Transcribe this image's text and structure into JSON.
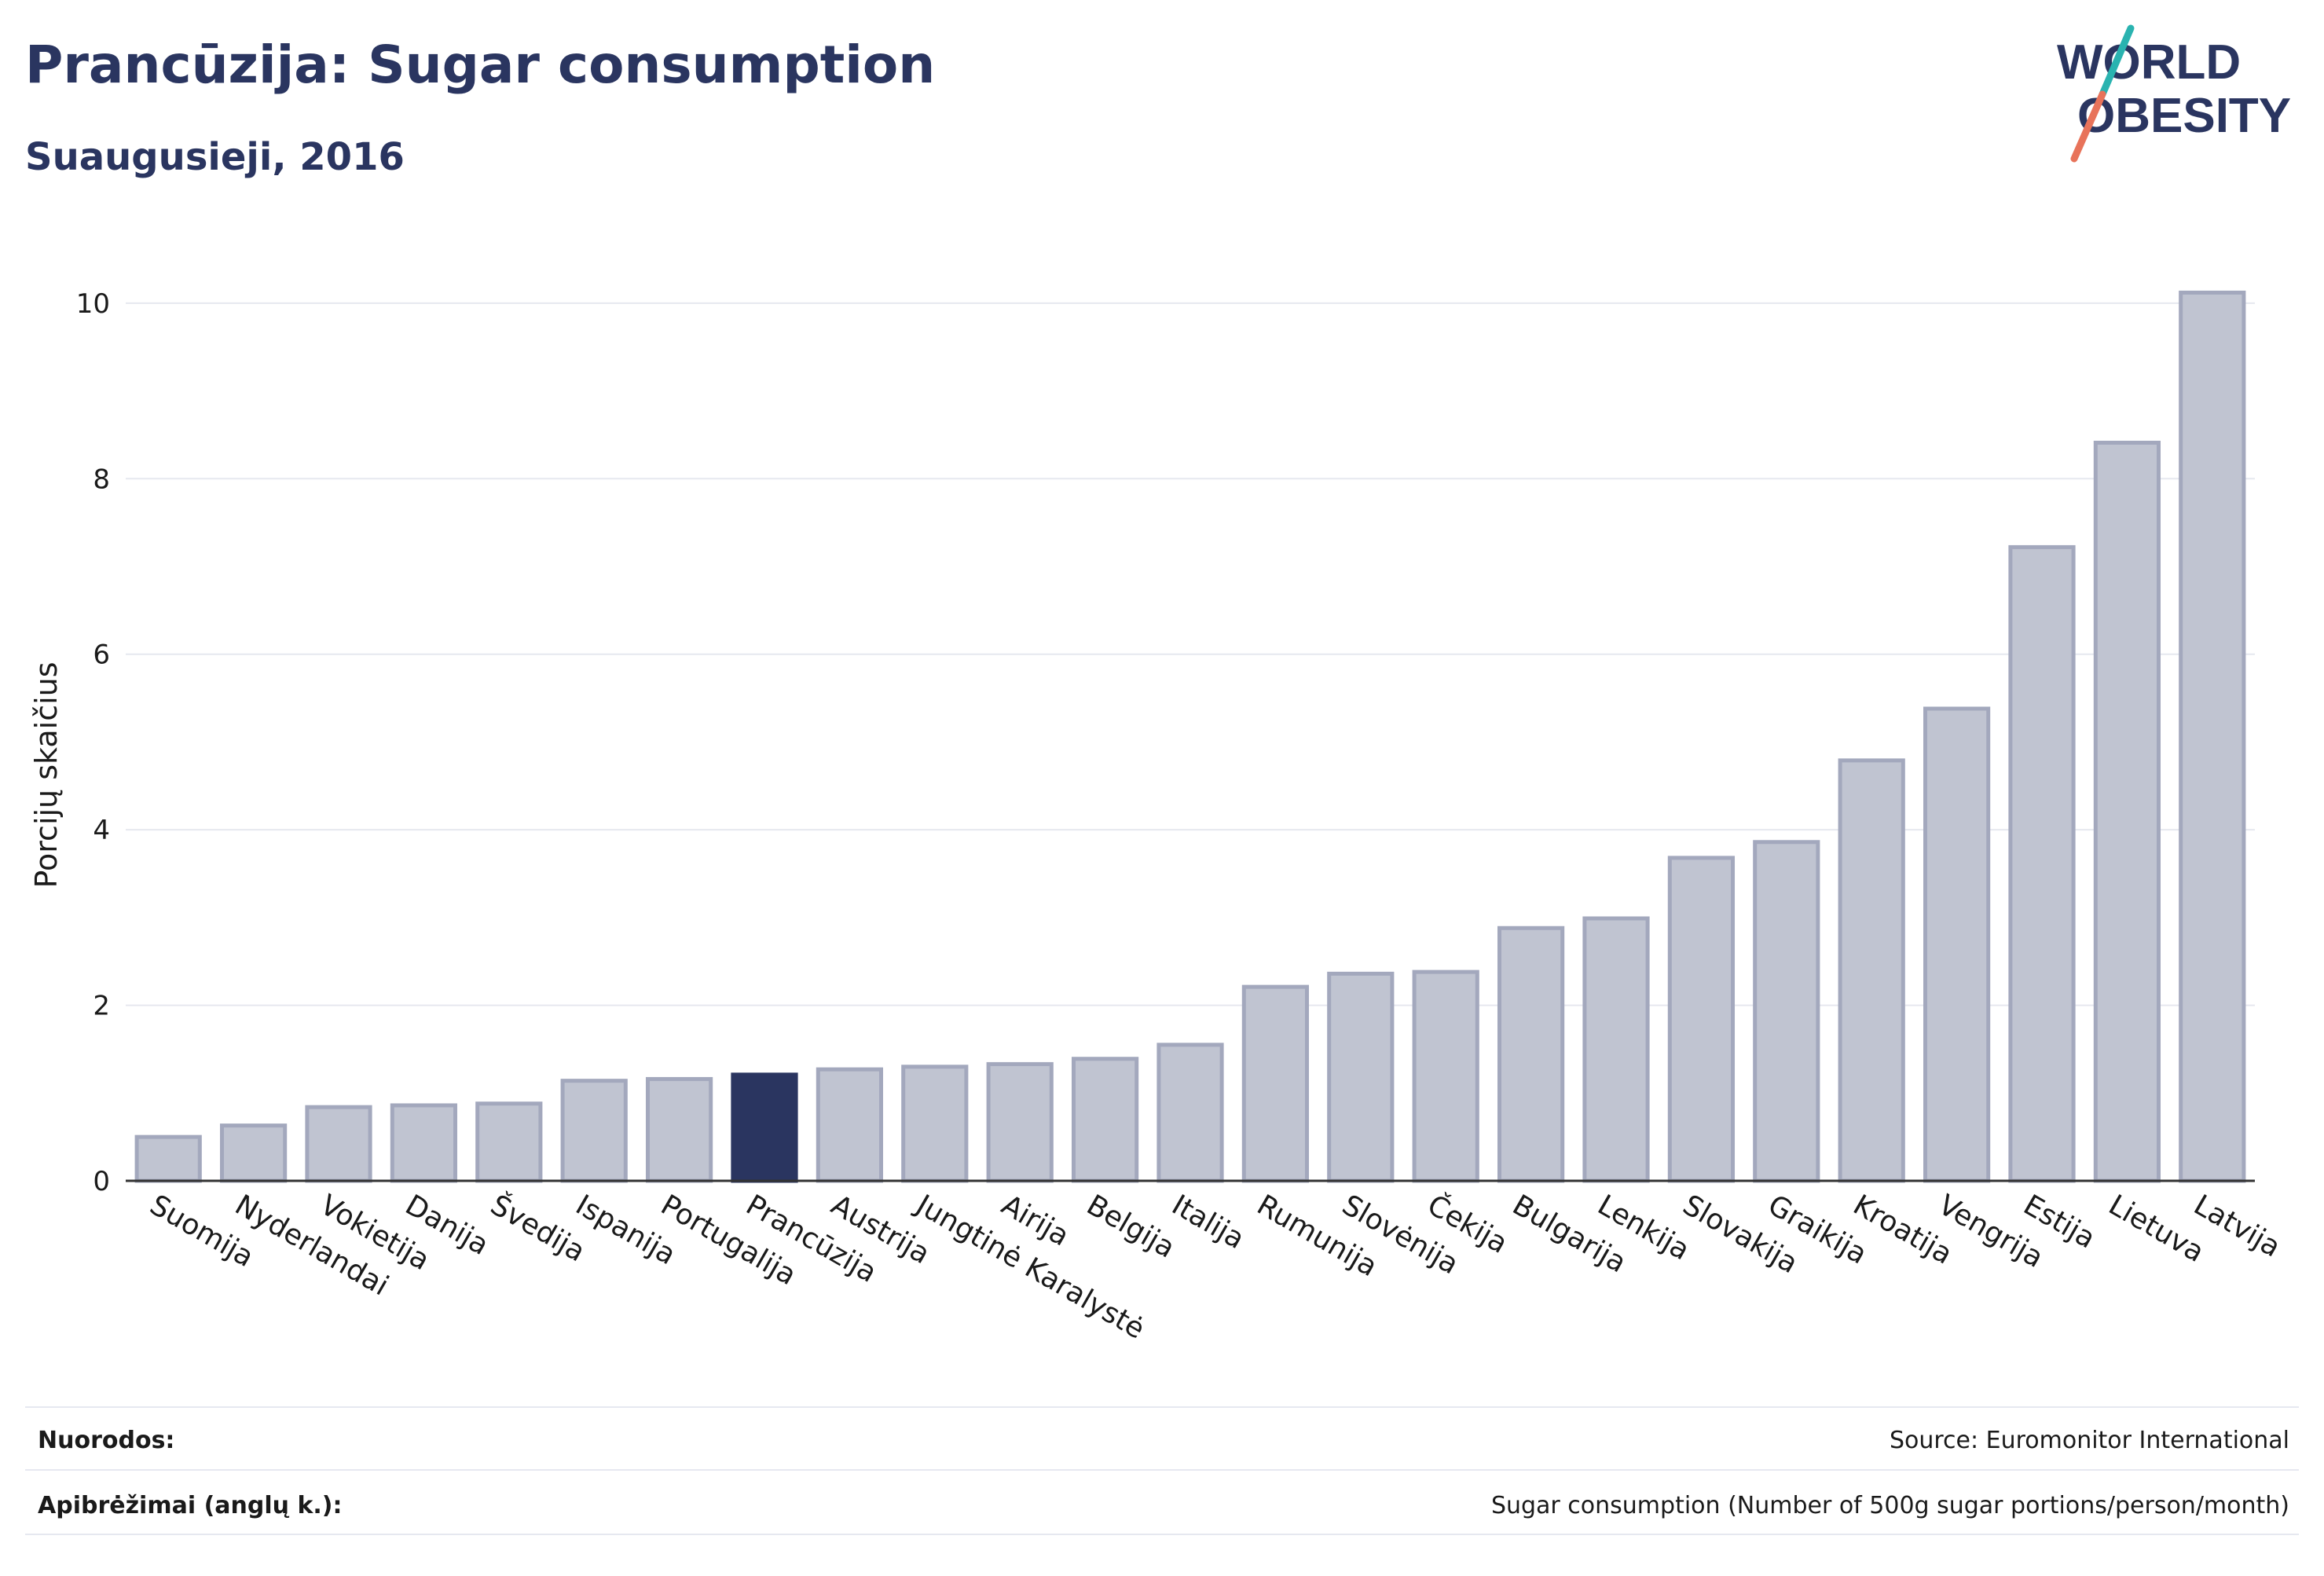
{
  "header": {
    "title": "Prancūzija: Sugar consumption",
    "subtitle": "Suaugusieji, 2016"
  },
  "logo": {
    "line1": "WORLD",
    "line2": "OBESITY",
    "colors": {
      "text": "#2a3560",
      "slash_top": "#2ab3b0",
      "slash_bottom": "#e8735a"
    }
  },
  "colors": {
    "bar": "#c0c4d1",
    "bar_stroke": "#a3a8bd",
    "highlight": "#2a3560",
    "grid": "#e6e8ef",
    "axis": "#333333"
  },
  "chart_data": {
    "type": "bar",
    "ylabel": "Porcijų skaičius",
    "xlabel": "",
    "ylim": [
      0,
      10.5
    ],
    "yticks": [
      0,
      2,
      4,
      6,
      8,
      10
    ],
    "grid": true,
    "highlight": "Prancūzija",
    "categories": [
      "Suomija",
      "Nyderlandai",
      "Vokietija",
      "Danija",
      "Švedija",
      "Ispanija",
      "Portugalija",
      "Prancūzija",
      "Austrija",
      "Jungtinė Karalystė",
      "Airija",
      "Belgija",
      "Italija",
      "Rumunija",
      "Slovėnija",
      "Čekija",
      "Bulgarija",
      "Lenkija",
      "Slovakija",
      "Graikija",
      "Kroatija",
      "Vengrija",
      "Estija",
      "Lietuva",
      "Latvija"
    ],
    "values": [
      0.5,
      0.63,
      0.84,
      0.86,
      0.88,
      1.14,
      1.16,
      1.21,
      1.27,
      1.3,
      1.33,
      1.39,
      1.55,
      2.21,
      2.36,
      2.38,
      2.88,
      2.99,
      3.68,
      3.86,
      4.79,
      5.38,
      7.22,
      8.41,
      10.12
    ]
  },
  "footer": {
    "references_label": "Nuorodos:",
    "references_value": "Source: Euromonitor International",
    "definitions_label": "Apibrėžimai (anglų k.):",
    "definitions_value": "Sugar consumption (Number of 500g sugar portions/person/month)"
  }
}
